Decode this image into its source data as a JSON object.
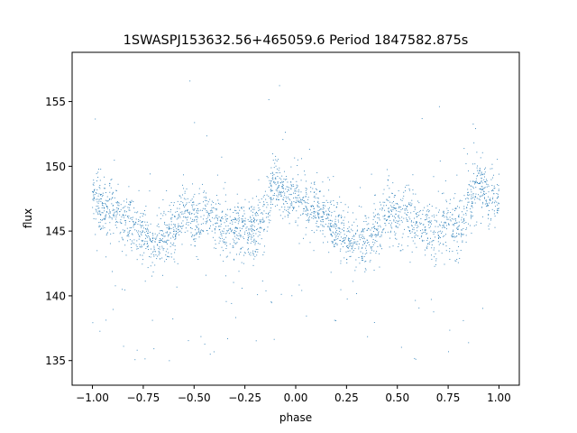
{
  "chart_data": {
    "type": "scatter",
    "title": "1SWASPJ153632.56+465059.6 Period 1847582.875s",
    "xlabel": "phase",
    "ylabel": "flux",
    "xlim": [
      -1.1,
      1.1
    ],
    "ylim": [
      133.1,
      158.8
    ],
    "xticks": [
      -1.0,
      -0.75,
      -0.5,
      -0.25,
      0.0,
      0.25,
      0.5,
      0.75,
      1.0
    ],
    "xtick_labels": [
      "−1.00",
      "−0.75",
      "−0.50",
      "−0.25",
      "0.00",
      "0.25",
      "0.50",
      "0.75",
      "1.00"
    ],
    "yticks": [
      135,
      140,
      145,
      150,
      155
    ],
    "ytick_labels": [
      "135",
      "140",
      "145",
      "150",
      "155"
    ],
    "grid": false,
    "marker_color": "#1f77b4",
    "phase_bins": [
      -1.0,
      -0.95,
      -0.9,
      -0.85,
      -0.8,
      -0.75,
      -0.7,
      -0.65,
      -0.6,
      -0.55,
      -0.5,
      -0.45,
      -0.4,
      -0.35,
      -0.3,
      -0.25,
      -0.2,
      -0.15,
      -0.1,
      -0.05,
      0.0,
      0.05,
      0.1,
      0.15,
      0.2,
      0.25,
      0.3,
      0.35,
      0.4,
      0.45,
      0.5,
      0.55,
      0.6,
      0.65,
      0.7,
      0.75,
      0.8,
      0.85,
      0.9,
      0.95,
      1.0
    ],
    "mean_flux": [
      148,
      146.5,
      147,
      146,
      145.5,
      144.5,
      144,
      144.5,
      145,
      146.5,
      145.5,
      146.5,
      146,
      145,
      145,
      145.5,
      145,
      146,
      149,
      147.5,
      148,
      147,
      146.5,
      146,
      145,
      144.5,
      144,
      144.5,
      145,
      146.5,
      146,
      146.5,
      145.5,
      145,
      145,
      145.5,
      145,
      146.5,
      149,
      147.5,
      148
    ]
  }
}
